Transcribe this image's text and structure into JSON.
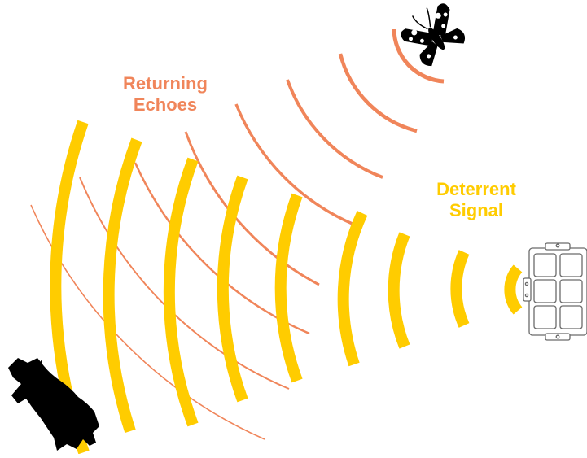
{
  "labels": {
    "echoes_line1": "Returning",
    "echoes_line2": "Echoes",
    "signal_line1": "Deterrent",
    "signal_line2": "Signal"
  },
  "colors": {
    "echo": "#F0855A",
    "signal": "#FFCC00",
    "silhouette": "#000000",
    "device_stroke": "#6b6b6b",
    "background": "#ffffff"
  },
  "icons": {
    "bat": "bat-icon",
    "moth": "moth-icon",
    "device": "ultrasonic-device-icon"
  }
}
